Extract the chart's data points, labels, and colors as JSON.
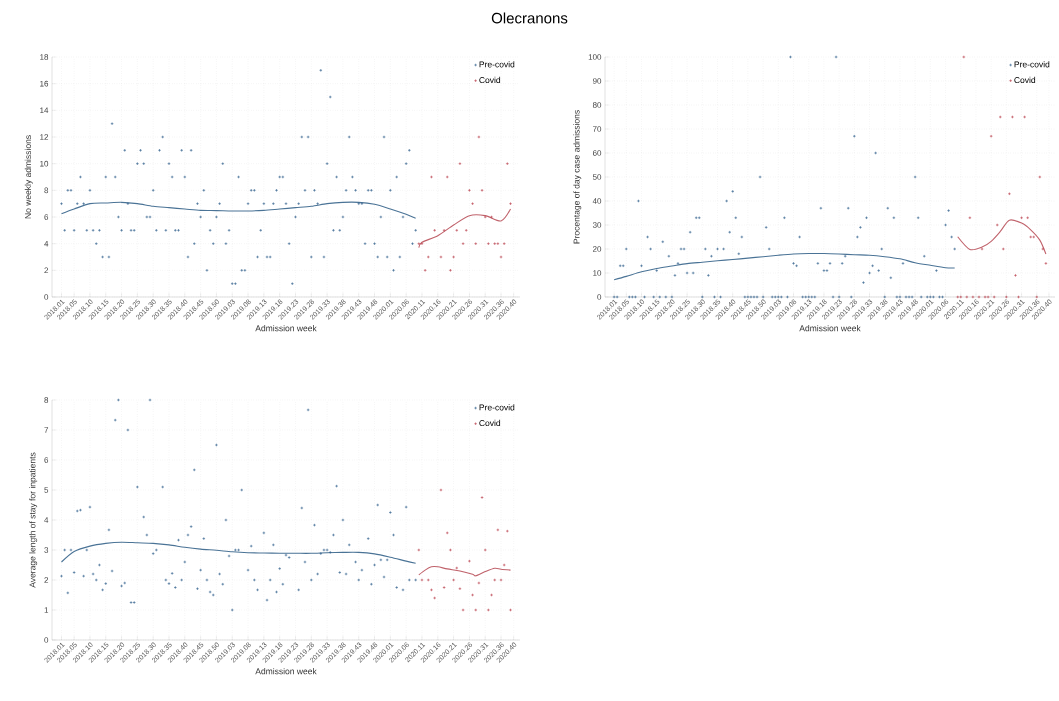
{
  "chart_data": [
    {
      "type": "scatter",
      "title": "Olecranons",
      "xlabel": "Admission week",
      "ylabel": "No weekly admissions",
      "ylim": [
        0,
        18
      ],
      "yticks": [
        0,
        2,
        4,
        6,
        8,
        10,
        12,
        14,
        16,
        18
      ],
      "grid": true,
      "legend": "top right",
      "marker": "cross",
      "categories": [
        "2018.01",
        null,
        null,
        null,
        "2018.05",
        null,
        null,
        null,
        null,
        "2018.10",
        null,
        null,
        null,
        null,
        "2018.15",
        null,
        null,
        null,
        null,
        "2018.20",
        null,
        null,
        null,
        null,
        "2018.25",
        null,
        null,
        null,
        null,
        "2018.30",
        null,
        null,
        null,
        null,
        "2018.35",
        null,
        null,
        null,
        null,
        "2018.40",
        null,
        null,
        null,
        null,
        "2018.45",
        null,
        null,
        null,
        null,
        "2018.50",
        null,
        null,
        null,
        null,
        "2019.03",
        null,
        null,
        null,
        null,
        "2019.08",
        null,
        null,
        null,
        null,
        "2019.13",
        null,
        null,
        null,
        null,
        "2019.18",
        null,
        null,
        null,
        null,
        "2019.23",
        null,
        null,
        null,
        null,
        "2019.28",
        null,
        null,
        null,
        null,
        "2019.33",
        null,
        null,
        null,
        null,
        "2019.38",
        null,
        null,
        null,
        null,
        "2019.43",
        null,
        null,
        null,
        null,
        "2019.48",
        null,
        null,
        null,
        null,
        "2020.01",
        null,
        null,
        null,
        null,
        "2020.06",
        null,
        null,
        null,
        null,
        "2020.11",
        null,
        null,
        null,
        null,
        "2020.16",
        null,
        null,
        null,
        null,
        "2020.21",
        null,
        null,
        null,
        null,
        "2020.26",
        null,
        null,
        null,
        null,
        "2020.31",
        null,
        null,
        null,
        null,
        "2020.36",
        null,
        null,
        null,
        "2020.40"
      ],
      "series": [
        {
          "name": "Pre-covid",
          "color": "#2b5c8a",
          "values": [
            7,
            5,
            8,
            8,
            5,
            7,
            9,
            7,
            5,
            8,
            5,
            4,
            5,
            3,
            9,
            3,
            13,
            9,
            6,
            5,
            11,
            7,
            5,
            5,
            10,
            11,
            10,
            6,
            6,
            8,
            5,
            11,
            12,
            5,
            10,
            9,
            5,
            5,
            11,
            9,
            3,
            11,
            4,
            7,
            6,
            8,
            2,
            5,
            4,
            6,
            7,
            10,
            4,
            5,
            1,
            1,
            9,
            2,
            2,
            7,
            8,
            8,
            3,
            5,
            7,
            3,
            3,
            7,
            8,
            9,
            9,
            7,
            4,
            1,
            6,
            7,
            12,
            8,
            12,
            3,
            8,
            7,
            17,
            3,
            10,
            15,
            5,
            9,
            5,
            6,
            8,
            12,
            9,
            8,
            7,
            7,
            4,
            8,
            8,
            4,
            3,
            6,
            12,
            3,
            8,
            2,
            9,
            3,
            6,
            10,
            11,
            4,
            5,
            null,
            null,
            null,
            null,
            null,
            null,
            null,
            null,
            null,
            null,
            null,
            null,
            null,
            null,
            null,
            null,
            null,
            null,
            null,
            null,
            null,
            null,
            null,
            null,
            null,
            null,
            null,
            null,
            null,
            null,
            null
          ]
        },
        {
          "name": "Covid",
          "color": "#b83a48",
          "values": [
            null,
            null,
            null,
            null,
            null,
            null,
            null,
            null,
            null,
            null,
            null,
            null,
            null,
            null,
            null,
            null,
            null,
            null,
            null,
            null,
            null,
            null,
            null,
            null,
            null,
            null,
            null,
            null,
            null,
            null,
            null,
            null,
            null,
            null,
            null,
            null,
            null,
            null,
            null,
            null,
            null,
            null,
            null,
            null,
            null,
            null,
            null,
            null,
            null,
            null,
            null,
            null,
            null,
            null,
            null,
            null,
            null,
            null,
            null,
            null,
            null,
            null,
            null,
            null,
            null,
            null,
            null,
            null,
            null,
            null,
            null,
            null,
            null,
            null,
            null,
            null,
            null,
            null,
            null,
            null,
            null,
            null,
            null,
            null,
            null,
            null,
            null,
            null,
            null,
            null,
            null,
            null,
            null,
            null,
            null,
            null,
            null,
            null,
            null,
            null,
            null,
            null,
            null,
            null,
            null,
            null,
            null,
            null,
            null,
            null,
            null,
            null,
            null,
            4,
            4,
            2,
            3,
            9,
            5,
            null,
            3,
            5,
            9,
            2,
            3,
            5,
            10,
            4,
            5,
            8,
            7,
            4,
            12,
            8,
            6,
            4,
            6,
            4,
            4,
            3,
            4,
            10,
            7,
            null
          ]
        },
        {
          "type": "line",
          "marker": "none",
          "color": "#4a7396",
          "values": [
            6.25,
            null,
            null,
            null,
            6.6,
            null,
            null,
            null,
            null,
            7.0,
            null,
            null,
            null,
            null,
            7.05,
            null,
            null,
            null,
            null,
            7.1,
            null,
            null,
            null,
            null,
            7.0,
            null,
            null,
            null,
            null,
            6.8,
            null,
            null,
            null,
            null,
            6.7,
            null,
            null,
            null,
            null,
            6.6,
            null,
            null,
            null,
            null,
            6.5,
            null,
            null,
            null,
            null,
            6.48,
            null,
            null,
            null,
            null,
            6.45,
            null,
            null,
            null,
            null,
            6.45,
            null,
            null,
            null,
            null,
            6.5,
            null,
            null,
            null,
            null,
            6.6,
            null,
            null,
            null,
            null,
            6.7,
            null,
            null,
            null,
            null,
            6.8,
            null,
            null,
            null,
            null,
            7.0,
            null,
            null,
            null,
            null,
            7.1,
            null,
            null,
            null,
            null,
            7.1,
            null,
            null,
            null,
            null,
            6.95,
            null,
            null,
            null,
            null,
            6.6,
            null,
            null,
            null,
            null,
            6.2,
            null,
            null,
            5.9,
            null,
            null,
            null,
            null,
            null,
            null,
            null,
            null,
            null,
            null,
            null,
            null,
            null,
            null,
            null,
            null,
            null,
            null,
            null,
            null,
            null,
            null,
            null,
            null,
            null,
            null,
            null,
            null,
            null,
            null,
            null
          ]
        },
        {
          "type": "line",
          "marker": "none",
          "color": "#c0626b",
          "values": [
            null,
            null,
            null,
            null,
            null,
            null,
            null,
            null,
            null,
            null,
            null,
            null,
            null,
            null,
            null,
            null,
            null,
            null,
            null,
            null,
            null,
            null,
            null,
            null,
            null,
            null,
            null,
            null,
            null,
            null,
            null,
            null,
            null,
            null,
            null,
            null,
            null,
            null,
            null,
            null,
            null,
            null,
            null,
            null,
            null,
            null,
            null,
            null,
            null,
            null,
            null,
            null,
            null,
            null,
            null,
            null,
            null,
            null,
            null,
            null,
            null,
            null,
            null,
            null,
            null,
            null,
            null,
            null,
            null,
            null,
            null,
            null,
            null,
            null,
            null,
            null,
            null,
            null,
            null,
            null,
            null,
            null,
            null,
            null,
            null,
            null,
            null,
            null,
            null,
            null,
            null,
            null,
            null,
            null,
            null,
            null,
            null,
            null,
            null,
            null,
            null,
            null,
            null,
            null,
            null,
            null,
            null,
            null,
            null,
            null,
            null,
            null,
            null,
            3.7,
            4.1,
            null,
            null,
            null,
            null,
            4.6,
            null,
            null,
            null,
            null,
            5.4,
            null,
            null,
            null,
            null,
            6.1,
            null,
            null,
            null,
            null,
            6.1,
            null,
            null,
            null,
            null,
            5.7,
            null,
            null,
            6.6,
            null
          ]
        }
      ]
    },
    {
      "type": "scatter",
      "xlabel": "Admission week",
      "ylabel": "Procentage of day case admissions",
      "ylim": [
        0,
        100
      ],
      "yticks": [
        0,
        10,
        20,
        30,
        40,
        50,
        60,
        70,
        80,
        90,
        100
      ],
      "grid": true,
      "legend": "top right",
      "marker": "cross",
      "categories": [
        "2018.01",
        null,
        null,
        null,
        "2018.05",
        null,
        null,
        null,
        null,
        "2018.10",
        null,
        null,
        null,
        null,
        "2018.15",
        null,
        null,
        null,
        null,
        "2018.20",
        null,
        null,
        null,
        null,
        "2018.25",
        null,
        null,
        null,
        null,
        "2018.30",
        null,
        null,
        null,
        null,
        "2018.35",
        null,
        null,
        null,
        null,
        "2018.40",
        null,
        null,
        null,
        null,
        "2018.45",
        null,
        null,
        null,
        null,
        "2018.50",
        null,
        null,
        null,
        null,
        "2019.03",
        null,
        null,
        null,
        null,
        "2019.08",
        null,
        null,
        null,
        null,
        "2019.13",
        null,
        null,
        null,
        null,
        "2019.18",
        null,
        null,
        null,
        null,
        "2019.23",
        null,
        null,
        null,
        null,
        "2019.28",
        null,
        null,
        null,
        null,
        "2019.33",
        null,
        null,
        null,
        null,
        "2019.38",
        null,
        null,
        null,
        null,
        "2019.43",
        null,
        null,
        null,
        null,
        "2019.48",
        null,
        null,
        null,
        null,
        "2020.01",
        null,
        null,
        null,
        null,
        "2020.06",
        null,
        null,
        null,
        null,
        "2020.11",
        null,
        null,
        null,
        null,
        "2020.16",
        null,
        null,
        null,
        null,
        "2020.21",
        null,
        null,
        null,
        null,
        "2020.26",
        null,
        null,
        null,
        null,
        "2020.31",
        null,
        null,
        null,
        null,
        "2020.36",
        null,
        null,
        null,
        "2020.40"
      ],
      "series": [
        {
          "name": "Pre-covid",
          "color": "#2b5c8a",
          "values": [
            0,
            0,
            13,
            13,
            20,
            0,
            0,
            0,
            40,
            13,
            0,
            25,
            20,
            0,
            11,
            0,
            23,
            0,
            17,
            0,
            9,
            14,
            20,
            20,
            10,
            27,
            10,
            33,
            33,
            0,
            20,
            9,
            17,
            0,
            20,
            0,
            20,
            40,
            27,
            44,
            33,
            18,
            25,
            0,
            0,
            0,
            0,
            0,
            50,
            0,
            29,
            20,
            0,
            0,
            0,
            0,
            33,
            0,
            100,
            14,
            13,
            25,
            0,
            0,
            0,
            0,
            0,
            14,
            37,
            11,
            11,
            14,
            0,
            100,
            0,
            14,
            17,
            37,
            0,
            67,
            25,
            29,
            6,
            33,
            10,
            13,
            60,
            11,
            20,
            0,
            37,
            8,
            33,
            0,
            0,
            14,
            0,
            0,
            0,
            50,
            33,
            0,
            17,
            0,
            0,
            0,
            11,
            0,
            0,
            30,
            36,
            25,
            20,
            null,
            null,
            null,
            null,
            null,
            null,
            null,
            null,
            null,
            null,
            null,
            null,
            null,
            null,
            null,
            null,
            null,
            null,
            null,
            null,
            null,
            null,
            null,
            null,
            null,
            null,
            null,
            null,
            null,
            null,
            null
          ]
        },
        {
          "name": "Covid",
          "color": "#b83a48",
          "values": [
            null,
            null,
            null,
            null,
            null,
            null,
            null,
            null,
            null,
            null,
            null,
            null,
            null,
            null,
            null,
            null,
            null,
            null,
            null,
            null,
            null,
            null,
            null,
            null,
            null,
            null,
            null,
            null,
            null,
            null,
            null,
            null,
            null,
            null,
            null,
            null,
            null,
            null,
            null,
            null,
            null,
            null,
            null,
            null,
            null,
            null,
            null,
            null,
            null,
            null,
            null,
            null,
            null,
            null,
            null,
            null,
            null,
            null,
            null,
            null,
            null,
            null,
            null,
            null,
            null,
            null,
            null,
            null,
            null,
            null,
            null,
            null,
            null,
            null,
            null,
            null,
            null,
            null,
            null,
            null,
            null,
            null,
            null,
            null,
            null,
            null,
            null,
            null,
            null,
            null,
            null,
            null,
            null,
            null,
            null,
            null,
            null,
            null,
            null,
            null,
            null,
            null,
            null,
            null,
            null,
            null,
            null,
            null,
            null,
            null,
            null,
            null,
            null,
            0,
            0,
            100,
            0,
            33,
            0,
            null,
            0,
            20,
            0,
            0,
            67,
            0,
            30,
            75,
            20,
            0,
            43,
            75,
            9,
            0,
            33,
            75,
            33,
            25,
            25,
            0,
            50,
            20,
            14,
            null
          ]
        },
        {
          "type": "line",
          "marker": "none",
          "color": "#4a7396",
          "values": [
            7.2,
            null,
            null,
            null,
            8.6,
            null,
            null,
            null,
            null,
            10.5,
            null,
            null,
            null,
            null,
            11.9,
            null,
            null,
            null,
            null,
            12.9,
            null,
            null,
            null,
            null,
            13.9,
            null,
            null,
            null,
            null,
            14.5,
            null,
            null,
            null,
            null,
            15.1,
            null,
            null,
            null,
            null,
            15.6,
            null,
            null,
            null,
            null,
            16.2,
            null,
            null,
            null,
            null,
            16.8,
            null,
            null,
            null,
            null,
            17.4,
            null,
            null,
            null,
            null,
            17.9,
            null,
            null,
            null,
            null,
            18.1,
            null,
            null,
            null,
            null,
            18.1,
            null,
            null,
            null,
            null,
            17.9,
            null,
            null,
            null,
            null,
            17.6,
            null,
            null,
            null,
            null,
            17.4,
            null,
            null,
            null,
            null,
            16.8,
            null,
            null,
            null,
            null,
            15.9,
            null,
            null,
            null,
            null,
            14.3,
            null,
            null,
            null,
            null,
            13.2,
            null,
            null,
            null,
            null,
            12.2,
            null,
            null,
            12.1,
            null,
            null,
            null,
            null,
            null,
            null,
            null,
            null,
            null,
            null,
            null,
            null,
            null,
            null,
            null,
            null,
            null,
            null,
            null,
            null,
            null,
            null,
            null,
            null,
            null,
            null,
            null,
            null,
            null,
            null,
            null
          ]
        },
        {
          "type": "line",
          "marker": "none",
          "color": "#c0626b",
          "values": [
            null,
            null,
            null,
            null,
            null,
            null,
            null,
            null,
            null,
            null,
            null,
            null,
            null,
            null,
            null,
            null,
            null,
            null,
            null,
            null,
            null,
            null,
            null,
            null,
            null,
            null,
            null,
            null,
            null,
            null,
            null,
            null,
            null,
            null,
            null,
            null,
            null,
            null,
            null,
            null,
            null,
            null,
            null,
            null,
            null,
            null,
            null,
            null,
            null,
            null,
            null,
            null,
            null,
            null,
            null,
            null,
            null,
            null,
            null,
            null,
            null,
            null,
            null,
            null,
            null,
            null,
            null,
            null,
            null,
            null,
            null,
            null,
            null,
            null,
            null,
            null,
            null,
            null,
            null,
            null,
            null,
            null,
            null,
            null,
            null,
            null,
            null,
            null,
            null,
            null,
            null,
            null,
            null,
            null,
            null,
            null,
            null,
            null,
            null,
            null,
            null,
            null,
            null,
            null,
            null,
            null,
            null,
            null,
            null,
            null,
            null,
            null,
            null,
            25.1,
            null,
            null,
            null,
            19.8,
            null,
            null,
            null,
            20.8,
            null,
            null,
            23.2,
            null,
            null,
            27.3,
            null,
            null,
            32.0,
            null,
            null,
            null,
            30.8,
            null,
            null,
            28.0,
            null,
            null,
            23.7,
            null,
            17.9,
            null
          ]
        }
      ]
    },
    {
      "type": "scatter",
      "xlabel": "Admission week",
      "ylabel": "Average length of stay for inpatients",
      "ylim": [
        0,
        8
      ],
      "yticks": [
        0,
        1,
        2,
        3,
        4,
        5,
        6,
        7,
        8
      ],
      "grid": true,
      "legend": "top right",
      "marker": "cross",
      "categories": [
        "2018.01",
        null,
        null,
        null,
        "2018.05",
        null,
        null,
        null,
        null,
        "2018.10",
        null,
        null,
        null,
        null,
        "2018.15",
        null,
        null,
        null,
        null,
        "2018.20",
        null,
        null,
        null,
        null,
        "2018.25",
        null,
        null,
        null,
        null,
        "2018.30",
        null,
        null,
        null,
        null,
        "2018.35",
        null,
        null,
        null,
        null,
        "2018.40",
        null,
        null,
        null,
        null,
        "2018.45",
        null,
        null,
        null,
        null,
        "2018.50",
        null,
        null,
        null,
        null,
        "2019.03",
        null,
        null,
        null,
        null,
        "2019.08",
        null,
        null,
        null,
        null,
        "2019.13",
        null,
        null,
        null,
        null,
        "2019.18",
        null,
        null,
        null,
        null,
        "2019.23",
        null,
        null,
        null,
        null,
        "2019.28",
        null,
        null,
        null,
        null,
        "2019.33",
        null,
        null,
        null,
        null,
        "2019.38",
        null,
        null,
        null,
        null,
        "2019.43",
        null,
        null,
        null,
        null,
        "2019.48",
        null,
        null,
        null,
        null,
        "2020.01",
        null,
        null,
        null,
        null,
        "2020.06",
        null,
        null,
        null,
        null,
        "2020.11",
        null,
        null,
        null,
        null,
        "2020.16",
        null,
        null,
        null,
        null,
        "2020.21",
        null,
        null,
        null,
        null,
        "2020.26",
        null,
        null,
        null,
        null,
        "2020.31",
        null,
        null,
        null,
        null,
        "2020.36",
        null,
        null,
        null,
        "2020.40"
      ],
      "series": [
        {
          "name": "Pre-covid",
          "color": "#2b5c8a",
          "values": [
            2.13,
            3.0,
            1.57,
            3.0,
            2.25,
            4.3,
            4.33,
            2.13,
            3.0,
            4.43,
            2.2,
            2.0,
            2.5,
            1.67,
            1.88,
            3.67,
            2.3,
            7.33,
            8,
            1.8,
            1.9,
            7,
            1.25,
            1.25,
            5.1,
            null,
            4.1,
            3.5,
            8,
            2.88,
            3.0,
            null,
            5.1,
            2.0,
            1.88,
            2.22,
            1.75,
            3.33,
            2.0,
            2.6,
            3.5,
            3.78,
            5.67,
            1.71,
            2.33,
            3.38,
            2.0,
            1.6,
            1.5,
            6.5,
            2.2,
            1.86,
            4.0,
            2.8,
            1.0,
            3.0,
            3.0,
            5.0,
            null,
            2.33,
            3.13,
            2.0,
            1.67,
            null,
            3.57,
            1.33,
            2.0,
            3.17,
            1.6,
            2.38,
            1.86,
            2.83,
            2.75,
            null,
            null,
            1.67,
            4.4,
            2.6,
            7.67,
            2.0,
            3.83,
            2.2,
            2.88,
            3.0,
            3.0,
            2.92,
            3.5,
            5.13,
            2.25,
            4.0,
            2.2,
            3.17,
            null,
            2.6,
            2.0,
            2.33,
            null,
            3.38,
            1.86,
            2.5,
            4.5,
            2.67,
            2.1,
            2.67,
            4.25,
            3.5,
            1.75,
            null,
            1.67,
            4.43,
            2.0,
            null,
            2.0,
            null,
            null,
            null,
            null,
            null,
            null,
            null,
            null,
            null,
            null,
            null,
            null,
            null,
            null,
            null,
            null,
            null,
            null,
            null,
            null,
            null,
            null,
            null,
            null,
            null,
            null,
            null,
            null,
            null,
            null,
            null
          ]
        },
        {
          "name": "Covid",
          "color": "#b83a48",
          "values": [
            null,
            null,
            null,
            null,
            null,
            null,
            null,
            null,
            null,
            null,
            null,
            null,
            null,
            null,
            null,
            null,
            null,
            null,
            null,
            null,
            null,
            null,
            null,
            null,
            null,
            null,
            null,
            null,
            null,
            null,
            null,
            null,
            null,
            null,
            null,
            null,
            null,
            null,
            null,
            null,
            null,
            null,
            null,
            null,
            null,
            null,
            null,
            null,
            null,
            null,
            null,
            null,
            null,
            null,
            null,
            null,
            null,
            null,
            null,
            null,
            null,
            null,
            null,
            null,
            null,
            null,
            null,
            null,
            null,
            null,
            null,
            null,
            null,
            null,
            null,
            null,
            null,
            null,
            null,
            null,
            null,
            null,
            null,
            null,
            null,
            null,
            null,
            null,
            null,
            null,
            null,
            null,
            null,
            null,
            null,
            null,
            null,
            null,
            null,
            null,
            null,
            null,
            null,
            null,
            null,
            null,
            null,
            null,
            null,
            null,
            null,
            null,
            null,
            3.0,
            2.0,
            null,
            2.0,
            1.67,
            1.4,
            null,
            5.0,
            1.75,
            3.57,
            3.0,
            2.0,
            2.4,
            1.71,
            1.0,
            null,
            2.63,
            1.5,
            1.0,
            1.9,
            4.75,
            3.0,
            1.0,
            1.5,
            2.0,
            3.67,
            2.0,
            2.5,
            3.63,
            1.0,
            null
          ]
        },
        {
          "type": "line",
          "marker": "none",
          "color": "#4a7396",
          "values": [
            2.6,
            null,
            null,
            null,
            2.95,
            null,
            null,
            null,
            null,
            3.13,
            null,
            null,
            null,
            null,
            3.22,
            null,
            null,
            null,
            null,
            3.26,
            null,
            null,
            null,
            null,
            3.24,
            null,
            null,
            null,
            null,
            3.22,
            null,
            null,
            null,
            null,
            3.17,
            null,
            null,
            null,
            null,
            3.09,
            null,
            null,
            null,
            null,
            3.03,
            null,
            null,
            null,
            null,
            2.99,
            null,
            null,
            null,
            null,
            2.94,
            null,
            null,
            null,
            null,
            2.91,
            null,
            null,
            null,
            null,
            2.9,
            null,
            null,
            null,
            null,
            2.89,
            null,
            null,
            null,
            null,
            2.89,
            null,
            null,
            null,
            null,
            2.89,
            null,
            null,
            null,
            null,
            2.91,
            null,
            null,
            null,
            null,
            2.92,
            null,
            null,
            null,
            null,
            2.92,
            null,
            null,
            null,
            null,
            2.87,
            null,
            null,
            null,
            null,
            2.76,
            null,
            null,
            null,
            null,
            2.63,
            null,
            null,
            2.56,
            null,
            null,
            null,
            null,
            null,
            null,
            null,
            null,
            null,
            null,
            null,
            null,
            null,
            null,
            null,
            null,
            null,
            null,
            null,
            null,
            null,
            null,
            null,
            null,
            null,
            null,
            null,
            null,
            null,
            null,
            null
          ]
        },
        {
          "type": "line",
          "marker": "none",
          "color": "#c0626b",
          "values": [
            null,
            null,
            null,
            null,
            null,
            null,
            null,
            null,
            null,
            null,
            null,
            null,
            null,
            null,
            null,
            null,
            null,
            null,
            null,
            null,
            null,
            null,
            null,
            null,
            null,
            null,
            null,
            null,
            null,
            null,
            null,
            null,
            null,
            null,
            null,
            null,
            null,
            null,
            null,
            null,
            null,
            null,
            null,
            null,
            null,
            null,
            null,
            null,
            null,
            null,
            null,
            null,
            null,
            null,
            null,
            null,
            null,
            null,
            null,
            null,
            null,
            null,
            null,
            null,
            null,
            null,
            null,
            null,
            null,
            null,
            null,
            null,
            null,
            null,
            null,
            null,
            null,
            null,
            null,
            null,
            null,
            null,
            null,
            null,
            null,
            null,
            null,
            null,
            null,
            null,
            null,
            null,
            null,
            null,
            null,
            null,
            null,
            null,
            null,
            null,
            null,
            null,
            null,
            null,
            null,
            null,
            null,
            null,
            null,
            null,
            null,
            null,
            null,
            2.17,
            null,
            2.33,
            null,
            2.44,
            null,
            2.44,
            null,
            null,
            2.37,
            null,
            null,
            null,
            2.3,
            null,
            null,
            null,
            2.19,
            2.14,
            null,
            null,
            2.28,
            null,
            null,
            2.39,
            null,
            2.36,
            null,
            null,
            2.33,
            null
          ]
        }
      ]
    }
  ]
}
